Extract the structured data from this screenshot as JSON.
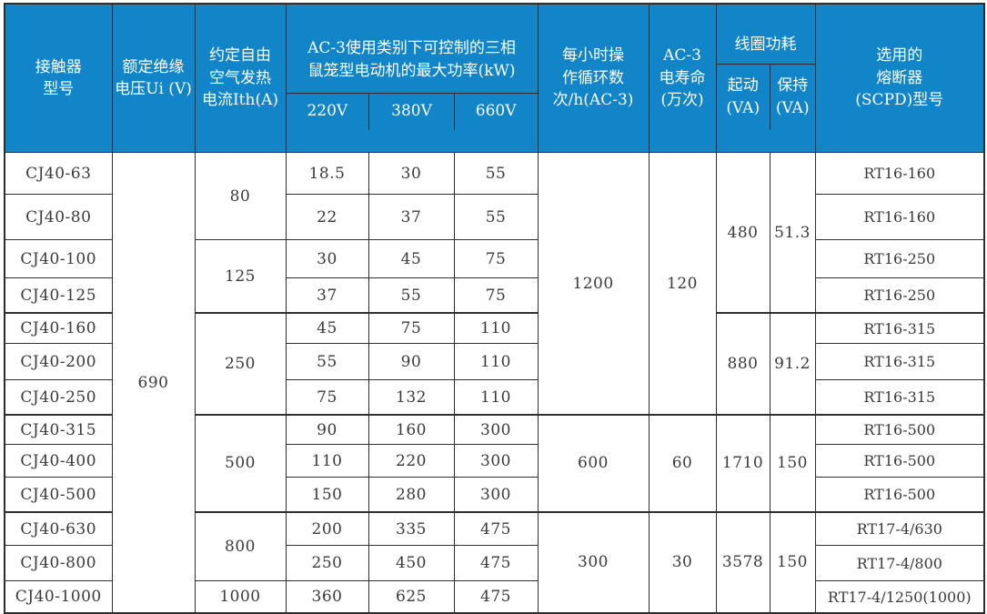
{
  "colors": {
    "header_bg": "#1185c7",
    "header_text": "#ffffff",
    "grid_line": "#2e2e2e",
    "body_text": "#3a3a3a"
  },
  "table": {
    "header": {
      "model": "接触器\n型号",
      "ui": "额定绝缘\n电压Ui (V)",
      "ith": "约定自由\n空气发热\n电流Ith(A)",
      "kw_group": "AC-3使用类别下可控制的三相\n鼠笼型电动机的最大功率(kW)",
      "kw_sub": [
        "220V",
        "380V",
        "660V"
      ],
      "cycles": "每小时操\n作循环数\n次/h(AC-3)",
      "life": "AC-3\n电寿命\n(万次)",
      "coil_group": "线圈功耗",
      "coil_sub": [
        "起动\n(VA)",
        "保持\n(VA)"
      ],
      "fuse": "选用的\n熔断器\n(SCPD)型号"
    },
    "rows": [
      [
        {
          "t": "CJ40-63",
          "n": "model"
        },
        {
          "t": "690",
          "r": 13,
          "n": "ui"
        },
        {
          "t": "80",
          "r": 2,
          "n": "ith"
        },
        {
          "t": "18.5",
          "n": "p220"
        },
        {
          "t": "30",
          "n": "p380"
        },
        {
          "t": "55",
          "n": "p660"
        },
        {
          "t": "1200",
          "r": 7,
          "n": "cycles"
        },
        {
          "t": "120",
          "r": 7,
          "n": "life"
        },
        {
          "t": "480",
          "r": 4,
          "n": "coil-start"
        },
        {
          "t": "51.3",
          "r": 4,
          "n": "coil-hold"
        },
        {
          "t": "RT16-160",
          "n": "fuse"
        }
      ],
      [
        {
          "t": "CJ40-80",
          "n": "model"
        },
        {
          "t": "22",
          "n": "p220"
        },
        {
          "t": "37",
          "n": "p380"
        },
        {
          "t": "55",
          "n": "p660"
        },
        {
          "t": "RT16-160",
          "n": "fuse"
        }
      ],
      [
        {
          "t": "CJ40-100",
          "n": "model"
        },
        {
          "t": "125",
          "r": 2,
          "n": "ith"
        },
        {
          "t": "30",
          "n": "p220"
        },
        {
          "t": "45",
          "n": "p380"
        },
        {
          "t": "75",
          "n": "p660"
        },
        {
          "t": "RT16-250",
          "n": "fuse"
        }
      ],
      [
        {
          "t": "CJ40-125",
          "n": "model"
        },
        {
          "t": "37",
          "n": "p220"
        },
        {
          "t": "55",
          "n": "p380"
        },
        {
          "t": "75",
          "n": "p660"
        },
        {
          "t": "RT16-250",
          "n": "fuse"
        }
      ],
      [
        {
          "t": "CJ40-160",
          "n": "model"
        },
        {
          "t": "250",
          "r": 3,
          "n": "ith"
        },
        {
          "t": "45",
          "n": "p220"
        },
        {
          "t": "75",
          "n": "p380"
        },
        {
          "t": "110",
          "n": "p660"
        },
        {
          "t": "880",
          "r": 3,
          "n": "coil-start"
        },
        {
          "t": "91.2",
          "r": 3,
          "n": "coil-hold"
        },
        {
          "t": "RT16-315",
          "n": "fuse"
        }
      ],
      [
        {
          "t": "CJ40-200",
          "n": "model"
        },
        {
          "t": "55",
          "n": "p220"
        },
        {
          "t": "90",
          "n": "p380"
        },
        {
          "t": "110",
          "n": "p660"
        },
        {
          "t": "RT16-315",
          "n": "fuse"
        }
      ],
      [
        {
          "t": "CJ40-250",
          "n": "model"
        },
        {
          "t": "75",
          "n": "p220"
        },
        {
          "t": "132",
          "n": "p380"
        },
        {
          "t": "110",
          "n": "p660"
        },
        {
          "t": "RT16-315",
          "n": "fuse"
        }
      ],
      [
        {
          "t": "CJ40-315",
          "n": "model"
        },
        {
          "t": "500",
          "r": 3,
          "n": "ith"
        },
        {
          "t": "90",
          "n": "p220"
        },
        {
          "t": "160",
          "n": "p380"
        },
        {
          "t": "300",
          "n": "p660"
        },
        {
          "t": "600",
          "r": 3,
          "n": "cycles"
        },
        {
          "t": "60",
          "r": 3,
          "n": "life"
        },
        {
          "t": "1710",
          "r": 3,
          "n": "coil-start"
        },
        {
          "t": "150",
          "r": 3,
          "n": "coil-hold"
        },
        {
          "t": "RT16-500",
          "n": "fuse"
        }
      ],
      [
        {
          "t": "CJ40-400",
          "n": "model"
        },
        {
          "t": "110",
          "n": "p220"
        },
        {
          "t": "220",
          "n": "p380"
        },
        {
          "t": "300",
          "n": "p660"
        },
        {
          "t": "RT16-500",
          "n": "fuse"
        }
      ],
      [
        {
          "t": "CJ40-500",
          "n": "model"
        },
        {
          "t": "150",
          "n": "p220"
        },
        {
          "t": "280",
          "n": "p380"
        },
        {
          "t": "300",
          "n": "p660"
        },
        {
          "t": "RT16-500",
          "n": "fuse"
        }
      ],
      [
        {
          "t": "CJ40-630",
          "n": "model"
        },
        {
          "t": "800",
          "r": 2,
          "n": "ith"
        },
        {
          "t": "200",
          "n": "p220"
        },
        {
          "t": "335",
          "n": "p380"
        },
        {
          "t": "475",
          "n": "p660"
        },
        {
          "t": "300",
          "r": 3,
          "n": "cycles"
        },
        {
          "t": "30",
          "r": 3,
          "n": "life"
        },
        {
          "t": "3578",
          "r": 3,
          "n": "coil-start"
        },
        {
          "t": "150",
          "r": 3,
          "n": "coil-hold"
        },
        {
          "t": "RT17-4/630",
          "n": "fuse"
        }
      ],
      [
        {
          "t": "CJ40-800",
          "n": "model"
        },
        {
          "t": "250",
          "n": "p220"
        },
        {
          "t": "450",
          "n": "p380"
        },
        {
          "t": "475",
          "n": "p660"
        },
        {
          "t": "RT17-4/800",
          "n": "fuse"
        }
      ],
      [
        {
          "t": "CJ40-1000",
          "n": "model"
        },
        {
          "t": "1000",
          "n": "ith"
        },
        {
          "t": "360",
          "n": "p220"
        },
        {
          "t": "625",
          "n": "p380"
        },
        {
          "t": "475",
          "n": "p660"
        },
        {
          "t": "RT17-4/1250(1000)",
          "n": "fuse"
        }
      ]
    ]
  }
}
